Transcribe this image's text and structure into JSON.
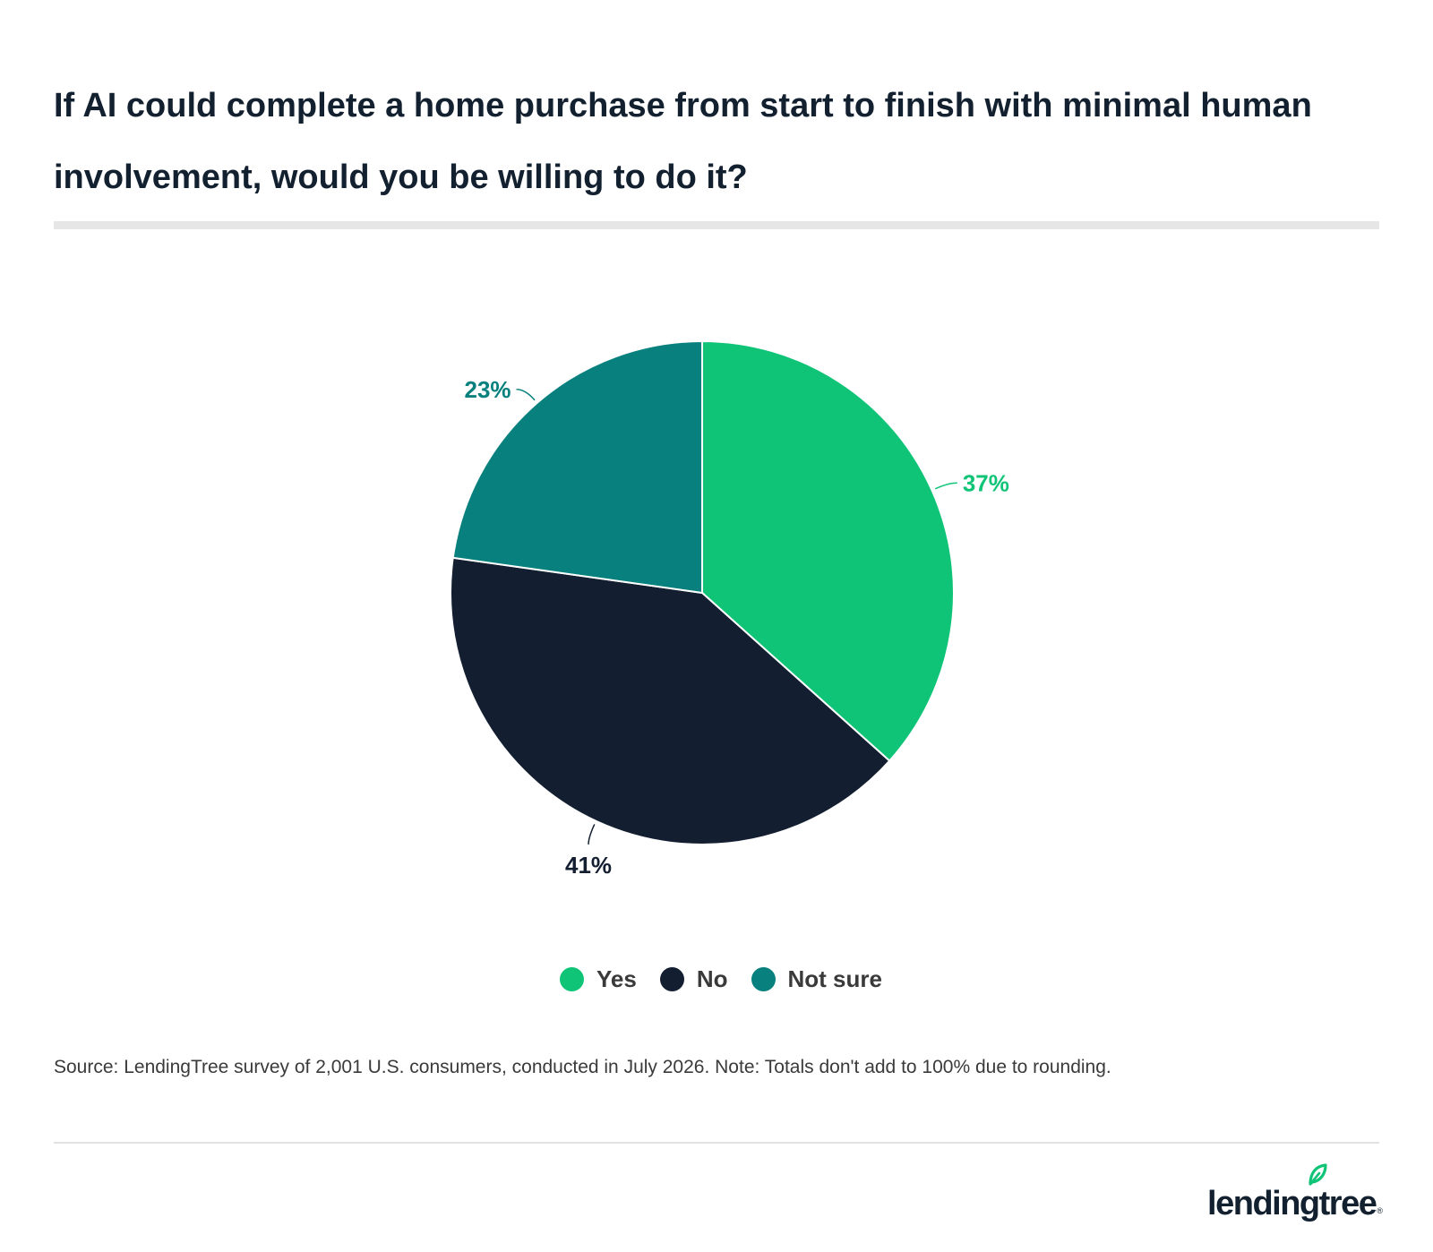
{
  "title": "If AI could complete a home purchase from start to finish with minimal human involvement, would you be willing to do it?",
  "source": "Source: LendingTree survey of 2,001 U.S. consumers, conducted in July 2026. Note: Totals don't add to 100% due to rounding.",
  "logo": {
    "text": "lendingtree",
    "registered": "®",
    "icon": "leaf-icon"
  },
  "colors": {
    "yes": "#10c477",
    "no": "#131f30",
    "not_sure": "#08817e",
    "title": "#12202f",
    "rule": "#e6e6e6"
  },
  "legend": {
    "items": [
      {
        "label": "Yes",
        "color": "#10c477"
      },
      {
        "label": "No",
        "color": "#131f30"
      },
      {
        "label": "Not sure",
        "color": "#08817e"
      }
    ],
    "placement": "bottom-center"
  },
  "chart_data": {
    "type": "pie",
    "title": "If AI could complete a home purchase from start to finish with minimal human involvement, would you be willing to do it?",
    "categories": [
      "Yes",
      "No",
      "Not sure"
    ],
    "values": [
      37,
      41,
      23
    ],
    "labels": [
      "37%",
      "41%",
      "23%"
    ],
    "colors": [
      "#10c477",
      "#131f30",
      "#08817e"
    ],
    "start_angle_deg": 0,
    "direction": "clockwise",
    "legend": "bottom"
  }
}
